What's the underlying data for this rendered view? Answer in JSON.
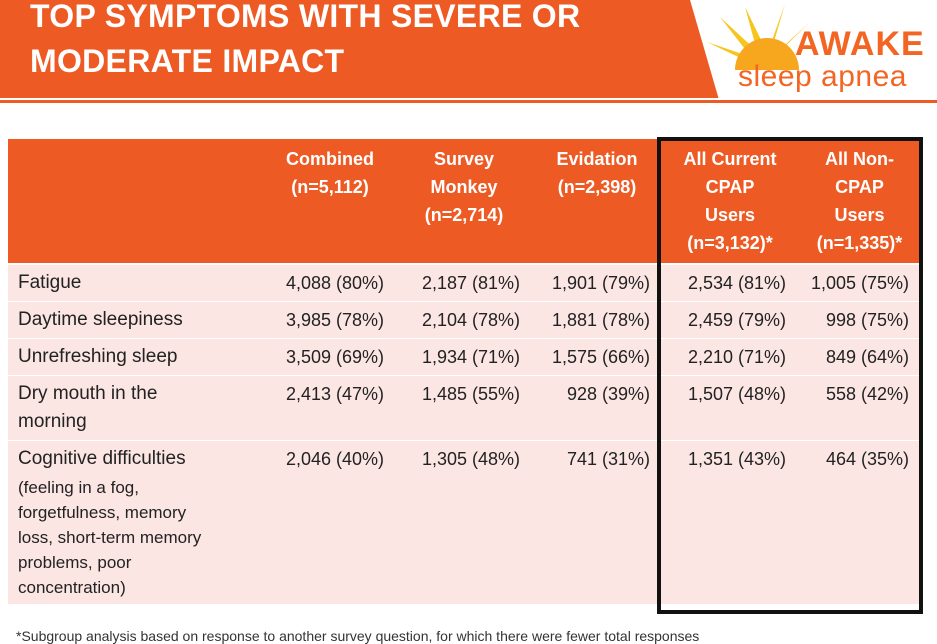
{
  "header": {
    "title": "TOP SYMPTOMS WITH SEVERE OR\nMODERATE IMPACT"
  },
  "logo": {
    "line1": "AWAKE",
    "line2": "sleep apnea",
    "icon": "sun-icon",
    "color": "#f26522"
  },
  "table": {
    "columns": [
      {
        "lines": [
          "",
          "",
          "",
          ""
        ]
      },
      {
        "lines": [
          "Combined",
          "(n=5,112)"
        ]
      },
      {
        "lines": [
          "Survey",
          "Monkey",
          "(n=2,714)"
        ]
      },
      {
        "lines": [
          "Evidation",
          "(n=2,398)"
        ]
      },
      {
        "lines": [
          "All Current",
          "CPAP",
          "Users",
          "(n=3,132)*"
        ]
      },
      {
        "lines": [
          "All Non-",
          "CPAP",
          "Users",
          "(n=1,335)*"
        ]
      }
    ],
    "rows": [
      {
        "name": [
          "Fatigue"
        ],
        "sub": "",
        "values": [
          "4,088 (80%)",
          "2,187 (81%)",
          "1,901 (79%)",
          "2,534 (81%)",
          "1,005 (75%)"
        ]
      },
      {
        "name": [
          "Daytime sleepiness"
        ],
        "sub": "",
        "values": [
          "3,985 (78%)",
          "2,104 (78%)",
          "1,881 (78%)",
          "2,459 (79%)",
          "998 (75%)"
        ]
      },
      {
        "name": [
          "Unrefreshing sleep"
        ],
        "sub": "",
        "values": [
          "3,509 (69%)",
          "1,934 (71%)",
          "1,575 (66%)",
          "2,210 (71%)",
          "849 (64%)"
        ]
      },
      {
        "name": [
          "Dry mouth in the",
          "morning"
        ],
        "sub": "",
        "values": [
          "2,413 (47%)",
          "1,485 (55%)",
          "928 (39%)",
          "1,507 (48%)",
          "558 (42%)"
        ]
      },
      {
        "name": [
          "Cognitive difficulties"
        ],
        "sub": [
          "(feeling in a fog,",
          "forgetfulness, memory",
          "loss, short-term memory",
          "problems, poor",
          "concentration)"
        ],
        "values": [
          "2,046 (40%)",
          "1,305 (48%)",
          "741 (31%)",
          "1,351 (43%)",
          "464 (35%)"
        ]
      }
    ]
  },
  "footnote": "*Subgroup analysis based on response to another survey question, for which there were fewer total responses"
}
